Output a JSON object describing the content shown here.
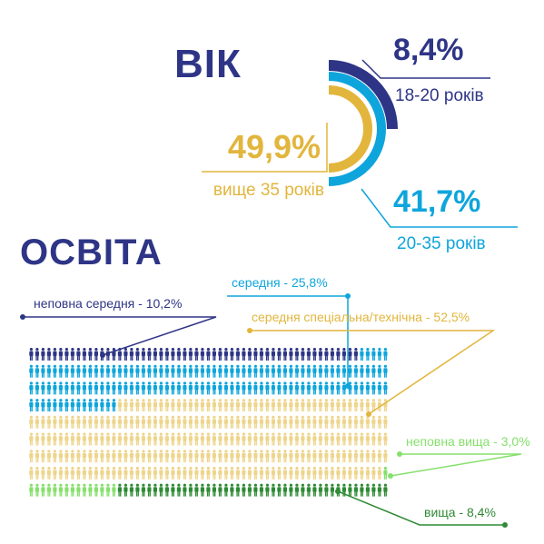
{
  "age": {
    "heading": "ВІК",
    "colors": {
      "navy": "#2e3586",
      "blue": "#0ea5dc",
      "gold": "#e2b53c"
    }
  },
  "education": {
    "heading": "ОСВІТА",
    "colors": {
      "navy": "#2e3586",
      "blue": "#0ea5dc",
      "sand": "#eed58d",
      "light_green": "#86e06c",
      "dark_green": "#2e8a34"
    }
  },
  "chart_data": [
    {
      "type": "pie",
      "title": "ВІК",
      "slices": [
        {
          "value_label": "8,4%",
          "value": 8.4,
          "category": "18-20 років",
          "color": "#2e3586"
        },
        {
          "value_label": "41,7%",
          "value": 41.7,
          "category": "20-35 років",
          "color": "#0ea5dc"
        },
        {
          "value_label": "49,9%",
          "value": 49.9,
          "category": "вище 35 років",
          "color": "#e2b53c"
        }
      ]
    },
    {
      "type": "bar",
      "title": "ОСВІТА",
      "unit": "%",
      "categories": [
        {
          "label": "неповна середня - 10,2%",
          "value": 10.2,
          "color": "#2e3586"
        },
        {
          "label": "середня - 25,8%",
          "value": 25.8,
          "color": "#0ea5dc"
        },
        {
          "label": "середня спеціальна/технічна - 52,5%",
          "value": 52.5,
          "color": "#eed58d"
        },
        {
          "label": "неповна вища - 3,0%",
          "value": 3.0,
          "color": "#86e06c"
        },
        {
          "label": "вища - 8,4%",
          "value": 8.4,
          "color": "#2e8a34"
        }
      ]
    }
  ]
}
